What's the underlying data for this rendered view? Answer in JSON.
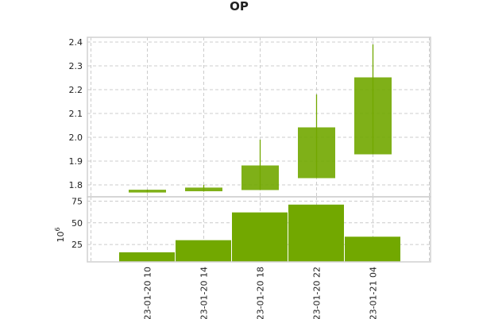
{
  "chart_data": {
    "type": "candlestick",
    "title": "OP",
    "color": "#72a800",
    "x_tick_labels": [
      "023-01-20 10",
      "023-01-20 14",
      "023-01-20 18",
      "023-01-20 22",
      "023-01-21 04"
    ],
    "price": {
      "ylim": [
        1.75,
        2.42
      ],
      "yticks": [
        1.8,
        1.9,
        2.0,
        2.1,
        2.2,
        2.3,
        2.4
      ],
      "ytick_labels": [
        "1.8",
        "1.9",
        "2.0",
        "2.1",
        "2.2",
        "2.3",
        "2.4"
      ],
      "candles": [
        {
          "open": 1.77,
          "high": 1.78,
          "low": 1.768,
          "close": 1.778
        },
        {
          "open": 1.775,
          "high": 1.8,
          "low": 1.772,
          "close": 1.787
        },
        {
          "open": 1.78,
          "high": 1.99,
          "low": 1.78,
          "close": 1.88
        },
        {
          "open": 1.83,
          "high": 2.18,
          "low": 1.83,
          "close": 2.04
        },
        {
          "open": 1.93,
          "high": 2.39,
          "low": 1.93,
          "close": 2.25
        }
      ]
    },
    "volume": {
      "scale_label": "10^6",
      "ylim": [
        5,
        80
      ],
      "yticks": [
        25,
        50,
        75
      ],
      "ytick_labels": [
        "25",
        "50",
        "75"
      ],
      "values": [
        16,
        30,
        62,
        71,
        34
      ]
    },
    "grid": true
  }
}
